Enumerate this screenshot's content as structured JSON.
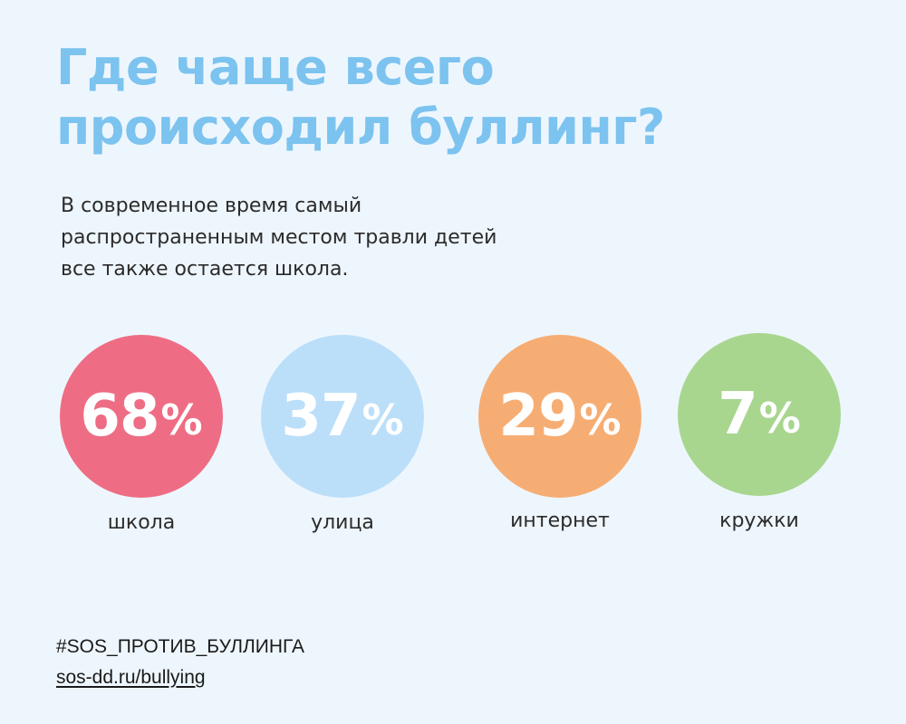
{
  "title": {
    "line1": "Где чаще всего",
    "line2": "происходил буллинг?"
  },
  "subtitle": {
    "line1": "В современное время самый",
    "line2": "распространенным местом травли детей",
    "line3": "все также остается школа."
  },
  "colors": {
    "title": "#7cc3ef",
    "background": "#eef6fd",
    "text": "#2b2b2b"
  },
  "chart_data": {
    "type": "bubble",
    "unit": "%",
    "categories": [
      "школа",
      "улица",
      "интернет",
      "кружки"
    ],
    "values": [
      68,
      37,
      29,
      7
    ],
    "value_labels": [
      "68",
      "37",
      "29",
      "7"
    ],
    "colors": [
      "#ee6d84",
      "#bcdff9",
      "#f6ad73",
      "#a8d68f"
    ]
  },
  "footer": {
    "hashtag": "#SOS_ПРОТИВ_БУЛЛИНГА",
    "link": "sos-dd.ru/bullying"
  }
}
